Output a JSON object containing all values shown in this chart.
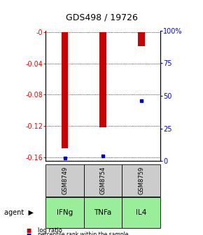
{
  "title": "GDS498 / 19726",
  "samples": [
    "GSM8749",
    "GSM8754",
    "GSM8759"
  ],
  "agents": [
    "IFNg",
    "TNFa",
    "IL4"
  ],
  "log_ratios": [
    -0.149,
    -0.122,
    -0.018
  ],
  "percentile_ranks": [
    0.02,
    0.04,
    0.46
  ],
  "ylim_left": [
    -0.165,
    0.002
  ],
  "ylim_right": [
    0,
    100
  ],
  "yticks_left": [
    0.0,
    -0.04,
    -0.08,
    -0.12,
    -0.16
  ],
  "yticks_right": [
    100,
    75,
    50,
    25,
    0
  ],
  "left_tick_labels": [
    "-0",
    "-0.04",
    "-0.08",
    "-0.12",
    "-0.16"
  ],
  "right_tick_labels": [
    "100%",
    "75",
    "50",
    "25",
    "0"
  ],
  "bar_color": "#cc0000",
  "percentile_color": "#0000cc",
  "gsm_bg_color": "#cccccc",
  "agent_bg_color": "#99ee99",
  "bar_width": 0.18
}
